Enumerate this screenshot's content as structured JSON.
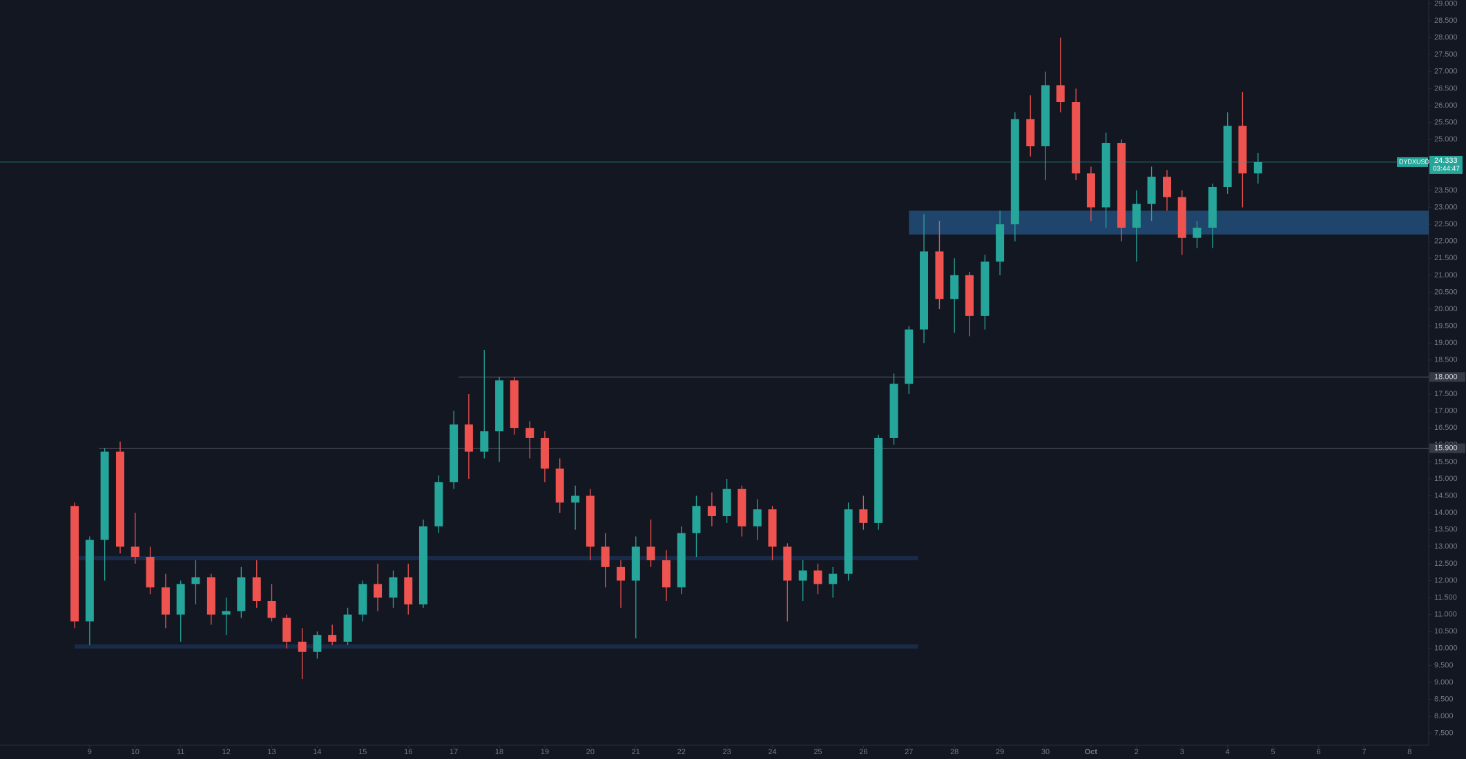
{
  "chart_data": {
    "type": "candlestick",
    "symbol": "DYDXUSD",
    "countdown": "03:44:47",
    "last": {
      "value": 24.333,
      "label": "24.333"
    },
    "up_color": "#26a69a",
    "down_color": "#ef5350",
    "x": [
      -0.33,
      0,
      0.33,
      0.67,
      1,
      1.33,
      1.67,
      2,
      2.33,
      2.67,
      3,
      3.33,
      3.67,
      4,
      4.33,
      4.67,
      5,
      5.33,
      5.67,
      6,
      6.33,
      6.67,
      7,
      7.33,
      7.67,
      8,
      8.33,
      8.67,
      9,
      9.33,
      9.67,
      10,
      10.33,
      10.67,
      11,
      11.33,
      11.67,
      12,
      12.33,
      12.67,
      13,
      13.33,
      13.67,
      14,
      14.33,
      14.67,
      15,
      15.33,
      15.67,
      16,
      16.33,
      16.67,
      17,
      17.33,
      17.67,
      18,
      18.33,
      18.67,
      19,
      19.33,
      19.67,
      20,
      20.33,
      20.67,
      21,
      21.33,
      21.67,
      22,
      22.33,
      22.67,
      23,
      23.33,
      23.67,
      24,
      24.33,
      24.67,
      25,
      25.33,
      25.67
    ],
    "open": [
      14.2,
      10.8,
      13.2,
      15.8,
      13.0,
      12.7,
      11.8,
      11.0,
      11.9,
      12.1,
      11.0,
      11.1,
      12.1,
      11.4,
      10.9,
      10.2,
      9.9,
      10.4,
      10.2,
      11.0,
      11.9,
      11.5,
      12.1,
      11.3,
      13.6,
      14.9,
      16.6,
      15.8,
      16.4,
      17.9,
      16.5,
      16.2,
      15.3,
      14.3,
      14.5,
      13.0,
      12.4,
      12.0,
      13.0,
      12.6,
      11.8,
      13.4,
      14.2,
      13.9,
      14.7,
      13.6,
      14.1,
      13.0,
      12.0,
      12.3,
      11.9,
      12.2,
      14.1,
      13.7,
      16.2,
      17.8,
      19.4,
      21.7,
      20.3,
      21.0,
      19.8,
      21.4,
      22.5,
      25.6,
      24.8,
      26.6,
      26.1,
      24.0,
      23.0,
      24.9,
      22.4,
      23.1,
      23.9,
      23.3,
      22.1,
      22.4,
      23.6,
      25.4,
      24.0
    ],
    "high": [
      14.3,
      13.3,
      15.9,
      16.1,
      14.0,
      13.0,
      12.2,
      12.0,
      12.6,
      12.2,
      11.5,
      12.4,
      12.6,
      11.9,
      11.0,
      10.6,
      10.5,
      10.7,
      11.2,
      12.0,
      12.5,
      12.3,
      12.5,
      13.8,
      15.1,
      17.0,
      17.5,
      18.8,
      18.0,
      18.0,
      16.7,
      16.4,
      15.6,
      14.8,
      14.7,
      13.4,
      12.6,
      13.3,
      13.8,
      12.9,
      13.6,
      14.5,
      14.6,
      15.0,
      14.8,
      14.4,
      14.2,
      13.1,
      12.6,
      12.5,
      12.4,
      14.3,
      14.5,
      16.3,
      18.1,
      19.5,
      22.8,
      22.6,
      21.5,
      21.1,
      21.6,
      22.9,
      25.8,
      26.3,
      27.0,
      28.0,
      26.5,
      24.2,
      25.2,
      25.0,
      23.5,
      24.2,
      24.1,
      23.5,
      22.6,
      23.7,
      25.8,
      26.4,
      24.6
    ],
    "low": [
      10.6,
      10.1,
      12.0,
      12.8,
      12.5,
      11.6,
      10.6,
      10.2,
      11.3,
      10.7,
      10.4,
      10.9,
      11.2,
      10.8,
      10.0,
      9.1,
      9.7,
      10.1,
      10.1,
      10.8,
      11.1,
      11.2,
      11.0,
      11.2,
      13.4,
      14.7,
      15.0,
      15.6,
      15.5,
      16.3,
      15.6,
      14.9,
      14.0,
      13.5,
      12.6,
      11.8,
      11.2,
      10.3,
      12.4,
      11.4,
      11.6,
      12.7,
      13.6,
      13.7,
      13.3,
      13.2,
      12.6,
      10.8,
      11.4,
      11.6,
      11.5,
      12.0,
      13.5,
      13.5,
      16.0,
      17.5,
      19.0,
      20.0,
      19.3,
      19.2,
      19.4,
      21.0,
      22.0,
      24.5,
      23.8,
      25.8,
      23.8,
      22.6,
      22.4,
      22.0,
      21.4,
      22.6,
      22.9,
      21.6,
      21.8,
      21.8,
      23.4,
      23.0,
      23.7
    ],
    "close": [
      10.8,
      13.2,
      15.8,
      13.0,
      12.7,
      11.8,
      11.0,
      11.9,
      12.1,
      11.0,
      11.1,
      12.1,
      11.4,
      10.9,
      10.2,
      9.9,
      10.4,
      10.2,
      11.0,
      11.9,
      11.5,
      12.1,
      11.3,
      13.6,
      14.9,
      16.6,
      15.8,
      16.4,
      17.9,
      16.5,
      16.2,
      15.3,
      14.3,
      14.5,
      13.0,
      12.4,
      12.0,
      13.0,
      12.6,
      11.8,
      13.4,
      14.2,
      13.9,
      14.7,
      13.6,
      14.1,
      13.0,
      12.0,
      12.3,
      11.9,
      12.2,
      14.1,
      13.7,
      16.2,
      17.8,
      19.4,
      21.7,
      20.3,
      21.0,
      19.8,
      21.4,
      22.5,
      25.6,
      24.8,
      26.6,
      26.1,
      24.0,
      23.0,
      24.9,
      22.4,
      23.1,
      23.9,
      23.3,
      22.1,
      22.4,
      23.6,
      25.4,
      24.0,
      24.333
    ],
    "levels": [
      {
        "value": 18,
        "label": "18.000",
        "from": 8.1
      },
      {
        "value": 15.9,
        "label": "15.900",
        "from": 0.2
      }
    ],
    "zones": [
      {
        "low": 22.2,
        "high": 22.9,
        "from": 18,
        "to": 29.42,
        "color": "#224a74"
      },
      {
        "low": 12.6,
        "high": 12.72,
        "from": -0.33,
        "to": 18.2,
        "color": "#1b2e4d"
      },
      {
        "low": 10.0,
        "high": 10.12,
        "from": -0.33,
        "to": 18.2,
        "color": "#1b2e4d"
      }
    ],
    "xlim": [
      -1.97,
      29.42
    ],
    "ylim": [
      7.15,
      29.11
    ],
    "xticks": [
      {
        "value": 0,
        "label": "9"
      },
      {
        "value": 1,
        "label": "10"
      },
      {
        "value": 2,
        "label": "11"
      },
      {
        "value": 3,
        "label": "12"
      },
      {
        "value": 4,
        "label": "13"
      },
      {
        "value": 5,
        "label": "14"
      },
      {
        "value": 6,
        "label": "15"
      },
      {
        "value": 7,
        "label": "16"
      },
      {
        "value": 8,
        "label": "17"
      },
      {
        "value": 9,
        "label": "18"
      },
      {
        "value": 10,
        "label": "19"
      },
      {
        "value": 11,
        "label": "20"
      },
      {
        "value": 12,
        "label": "21"
      },
      {
        "value": 13,
        "label": "22"
      },
      {
        "value": 14,
        "label": "23"
      },
      {
        "value": 15,
        "label": "24"
      },
      {
        "value": 16,
        "label": "25"
      },
      {
        "value": 17,
        "label": "26"
      },
      {
        "value": 18,
        "label": "27"
      },
      {
        "value": 19,
        "label": "28"
      },
      {
        "value": 20,
        "label": "29"
      },
      {
        "value": 21,
        "label": "30"
      },
      {
        "value": 22,
        "label": "Oct"
      },
      {
        "value": 23,
        "label": "2"
      },
      {
        "value": 24,
        "label": "3"
      },
      {
        "value": 25,
        "label": "4"
      },
      {
        "value": 26,
        "label": "5"
      },
      {
        "value": 27,
        "label": "6"
      },
      {
        "value": 28,
        "label": "7"
      },
      {
        "value": 29,
        "label": "8"
      }
    ],
    "yticks": [
      {
        "value": 7.5,
        "label": "7.500"
      },
      {
        "value": 8,
        "label": "8.000"
      },
      {
        "value": 8.5,
        "label": "8.500"
      },
      {
        "value": 9,
        "label": "9.000"
      },
      {
        "value": 9.5,
        "label": "9.500"
      },
      {
        "value": 10,
        "label": "10.000"
      },
      {
        "value": 10.5,
        "label": "10.500"
      },
      {
        "value": 11,
        "label": "11.000"
      },
      {
        "value": 11.5,
        "label": "11.500"
      },
      {
        "value": 12,
        "label": "12.000"
      },
      {
        "value": 12.5,
        "label": "12.500"
      },
      {
        "value": 13,
        "label": "13.000"
      },
      {
        "value": 13.5,
        "label": "13.500"
      },
      {
        "value": 14,
        "label": "14.000"
      },
      {
        "value": 14.5,
        "label": "14.500"
      },
      {
        "value": 15,
        "label": "15.000"
      },
      {
        "value": 15.5,
        "label": "15.500"
      },
      {
        "value": 16,
        "label": "16.000"
      },
      {
        "value": 16.5,
        "label": "16.500"
      },
      {
        "value": 17,
        "label": "17.000"
      },
      {
        "value": 17.5,
        "label": "17.500"
      },
      {
        "value": 18.5,
        "label": "18.500"
      },
      {
        "value": 19,
        "label": "19.000"
      },
      {
        "value": 19.5,
        "label": "19.500"
      },
      {
        "value": 20,
        "label": "20.000"
      },
      {
        "value": 20.5,
        "label": "20.500"
      },
      {
        "value": 21,
        "label": "21.000"
      },
      {
        "value": 21.5,
        "label": "21.500"
      },
      {
        "value": 22,
        "label": "22.000"
      },
      {
        "value": 22.5,
        "label": "22.500"
      },
      {
        "value": 23,
        "label": "23.000"
      },
      {
        "value": 23.5,
        "label": "23.500"
      },
      {
        "value": 25,
        "label": "25.000"
      },
      {
        "value": 25.5,
        "label": "25.500"
      },
      {
        "value": 26,
        "label": "26.000"
      },
      {
        "value": 26.5,
        "label": "26.500"
      },
      {
        "value": 27,
        "label": "27.000"
      },
      {
        "value": 27.5,
        "label": "27.500"
      },
      {
        "value": 28,
        "label": "28.000"
      },
      {
        "value": 28.5,
        "label": "28.500"
      },
      {
        "value": 29,
        "label": "29.000"
      }
    ]
  }
}
